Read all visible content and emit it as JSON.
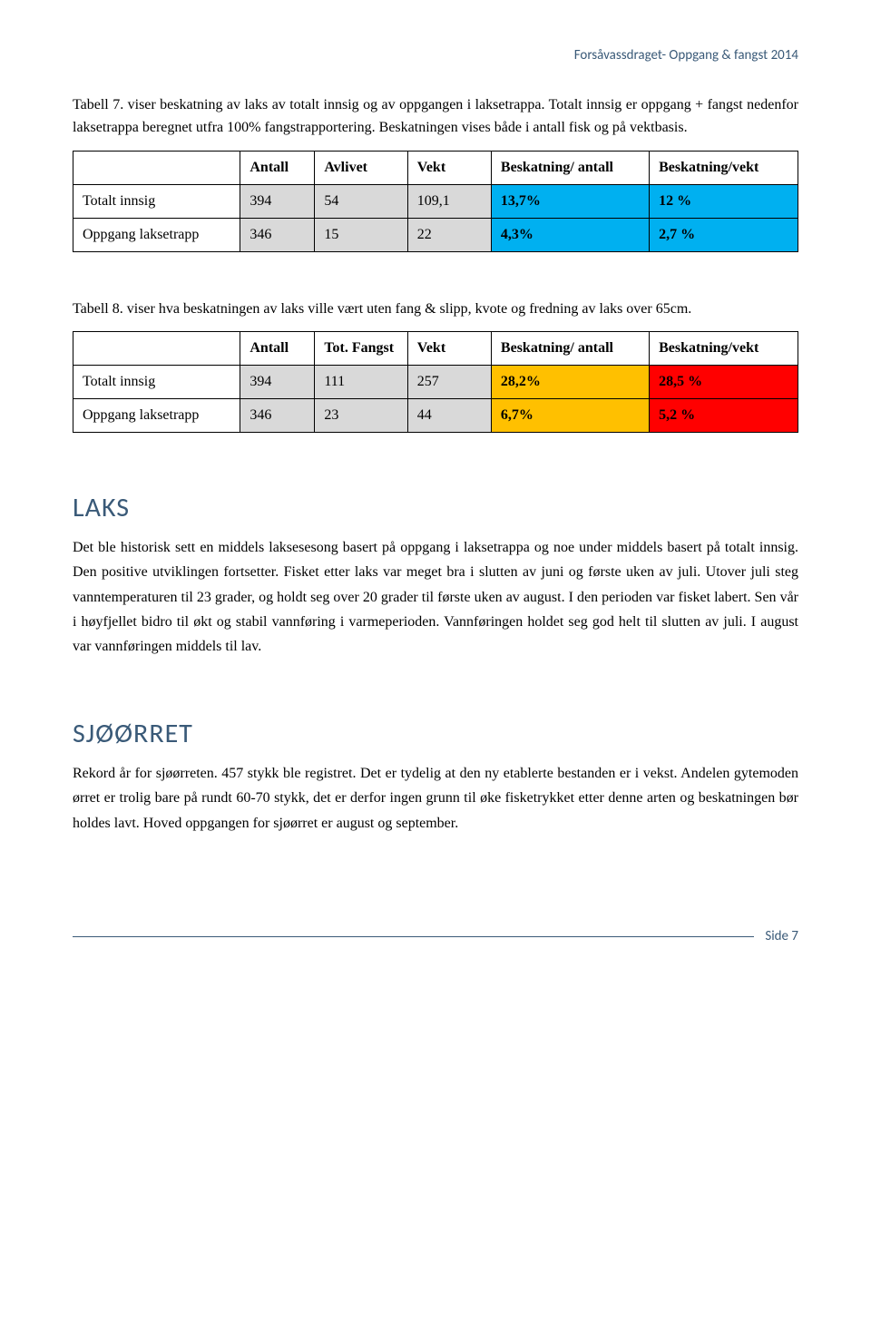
{
  "header": {
    "text": "Forsåvassdraget- Oppgang & fangst 2014"
  },
  "table7": {
    "caption": "Tabell 7. viser beskatning av laks av totalt innsig og av oppgangen i laksetrappa. Totalt innsig er oppgang + fangst nedenfor laksetrappa beregnet utfra 100% fangstrapportering. Beskatningen vises både i antall fisk og på vektbasis.",
    "headers": [
      "",
      "Antall",
      "Avlivet",
      "Vekt",
      "Beskatning/ antall",
      "Beskatning/vekt"
    ],
    "rows": [
      {
        "label": "Totalt innsig",
        "antall": "394",
        "avlivet": "54",
        "vekt": "109,1",
        "b_antall": "13,7%",
        "b_vekt": "12 %"
      },
      {
        "label": "Oppgang laksetrapp",
        "antall": "346",
        "avlivet": "15",
        "vekt": "22",
        "b_antall": "4,3%",
        "b_vekt": "2,7 %"
      }
    ]
  },
  "table8": {
    "caption": "Tabell 8. viser hva beskatningen av laks ville vært uten fang & slipp, kvote og fredning av laks over 65cm.",
    "headers": [
      "",
      "Antall",
      "Tot. Fangst",
      "Vekt",
      "Beskatning/ antall",
      "Beskatning/vekt"
    ],
    "rows": [
      {
        "label": "Totalt innsig",
        "antall": "394",
        "fangst": "111",
        "vekt": "257",
        "b_antall": "28,2%",
        "b_vekt": "28,5 %"
      },
      {
        "label": "Oppgang laksetrapp",
        "antall": "346",
        "fangst": "23",
        "vekt": "44",
        "b_antall": "6,7%",
        "b_vekt": "5,2 %"
      }
    ]
  },
  "laks": {
    "title": "LAKS",
    "text": "Det ble historisk sett en middels laksesesong basert på oppgang i laksetrappa og noe under middels basert på totalt innsig. Den positive utviklingen fortsetter. Fisket etter laks var meget bra i slutten av juni og første uken av juli. Utover juli steg vanntemperaturen til 23 grader, og holdt seg over 20 grader til første uken av august. I den perioden var fisket labert. Sen vår i høyfjellet bidro til økt og stabil vannføring i varmeperioden. Vannføringen holdet seg god helt til slutten av juli. I august var vannføringen middels til lav."
  },
  "sjoorret": {
    "title": "SJØØRRET",
    "text": "Rekord år for sjøørreten. 457 stykk ble registret. Det er tydelig at den ny etablerte bestanden er i vekst. Andelen gytemoden ørret er trolig bare på rundt 60-70 stykk, det er derfor ingen grunn til øke fisketrykket etter denne arten og beskatningen bør holdes lavt. Hoved oppgangen for sjøørret er august og september."
  },
  "footer": {
    "text": "Side 7"
  },
  "colors": {
    "blue_cell": "#00b0f0",
    "orange_cell": "#ffc000",
    "red_cell": "#ff0000",
    "grey_cell": "#d9d9d9",
    "header_text": "#3a5a78"
  }
}
